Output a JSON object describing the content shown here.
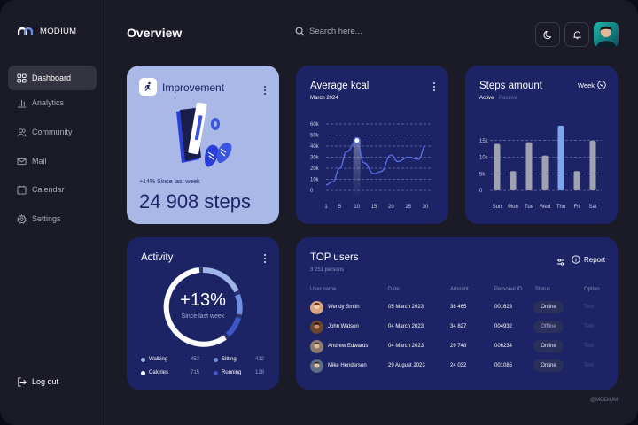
{
  "app": {
    "name": "MODIUM",
    "watermark": "@MODIUM"
  },
  "sidebar": {
    "items": [
      {
        "label": "Dashboard",
        "icon": "grid-icon"
      },
      {
        "label": "Analytics",
        "icon": "bar-chart-icon"
      },
      {
        "label": "Community",
        "icon": "users-icon"
      },
      {
        "label": "Mail",
        "icon": "mail-icon"
      },
      {
        "label": "Calendar",
        "icon": "calendar-icon"
      },
      {
        "label": "Settings",
        "icon": "gear-icon"
      }
    ],
    "logout": "Log out"
  },
  "header": {
    "title": "Overview",
    "search_placeholder": "Search here..."
  },
  "improvement": {
    "title": "Improvement",
    "since": "+14% Since last week",
    "steps": "24 908 steps"
  },
  "kcal": {
    "title": "Average kcal",
    "subtitle": "March 2024",
    "chart_data": {
      "type": "line",
      "x": [
        1,
        3,
        5,
        7,
        10,
        12,
        15,
        17,
        20,
        22,
        25,
        28,
        30
      ],
      "y": [
        5,
        8,
        20,
        35,
        45,
        25,
        15,
        17,
        32,
        26,
        30,
        28,
        40
      ],
      "yticks": [
        "0",
        "10k",
        "20k",
        "30k",
        "40k",
        "50k",
        "60k"
      ],
      "xticks": [
        "1",
        "5",
        "10",
        "15",
        "20",
        "25",
        "30"
      ],
      "highlight_x": "10"
    }
  },
  "steps": {
    "title": "Steps amount",
    "period": "Week",
    "active": "Active",
    "passive": "Passive",
    "chart_data": {
      "type": "bar",
      "categories": [
        "Sun",
        "Mon",
        "Tue",
        "Wed",
        "Thu",
        "Fri",
        "Sat"
      ],
      "values": [
        14,
        5.8,
        14.5,
        10.5,
        19.5,
        5.8,
        15
      ],
      "yticks": [
        "0",
        "5k",
        "10k",
        "15k"
      ],
      "highlight": "Thu"
    }
  },
  "activity": {
    "title": "Activity",
    "percent": "+13%",
    "since": "Since last week",
    "legend": [
      {
        "label": "Walking",
        "value": "452",
        "color": "#9fb4e8"
      },
      {
        "label": "Sitting",
        "value": "412",
        "color": "#6f8fe0"
      },
      {
        "label": "Calories",
        "value": "715",
        "color": "#ffffff"
      },
      {
        "label": "Running",
        "value": "128",
        "color": "#3e57c8"
      }
    ]
  },
  "top_users": {
    "title": "TOP users",
    "subtitle": "3 251 persons",
    "report": "Report",
    "columns": [
      "User name",
      "Date",
      "Amount",
      "Personal ID",
      "Status",
      "Option"
    ],
    "rows": [
      {
        "name": "Wendy Smith",
        "date": "05 March 2023",
        "amount": "38 465",
        "id": "001623",
        "status": "Online",
        "option": "Text"
      },
      {
        "name": "John Watson",
        "date": "04 March 2023",
        "amount": "34 827",
        "id": "004932",
        "status": "Offline",
        "option": "Text"
      },
      {
        "name": "Andrew Edwards",
        "date": "04 March 2023",
        "amount": "29 748",
        "id": "006234",
        "status": "Online",
        "option": "Text"
      },
      {
        "name": "Mike Henderson",
        "date": "29 August 2023",
        "amount": "24 032",
        "id": "001085",
        "status": "Online",
        "option": "Text"
      }
    ]
  }
}
